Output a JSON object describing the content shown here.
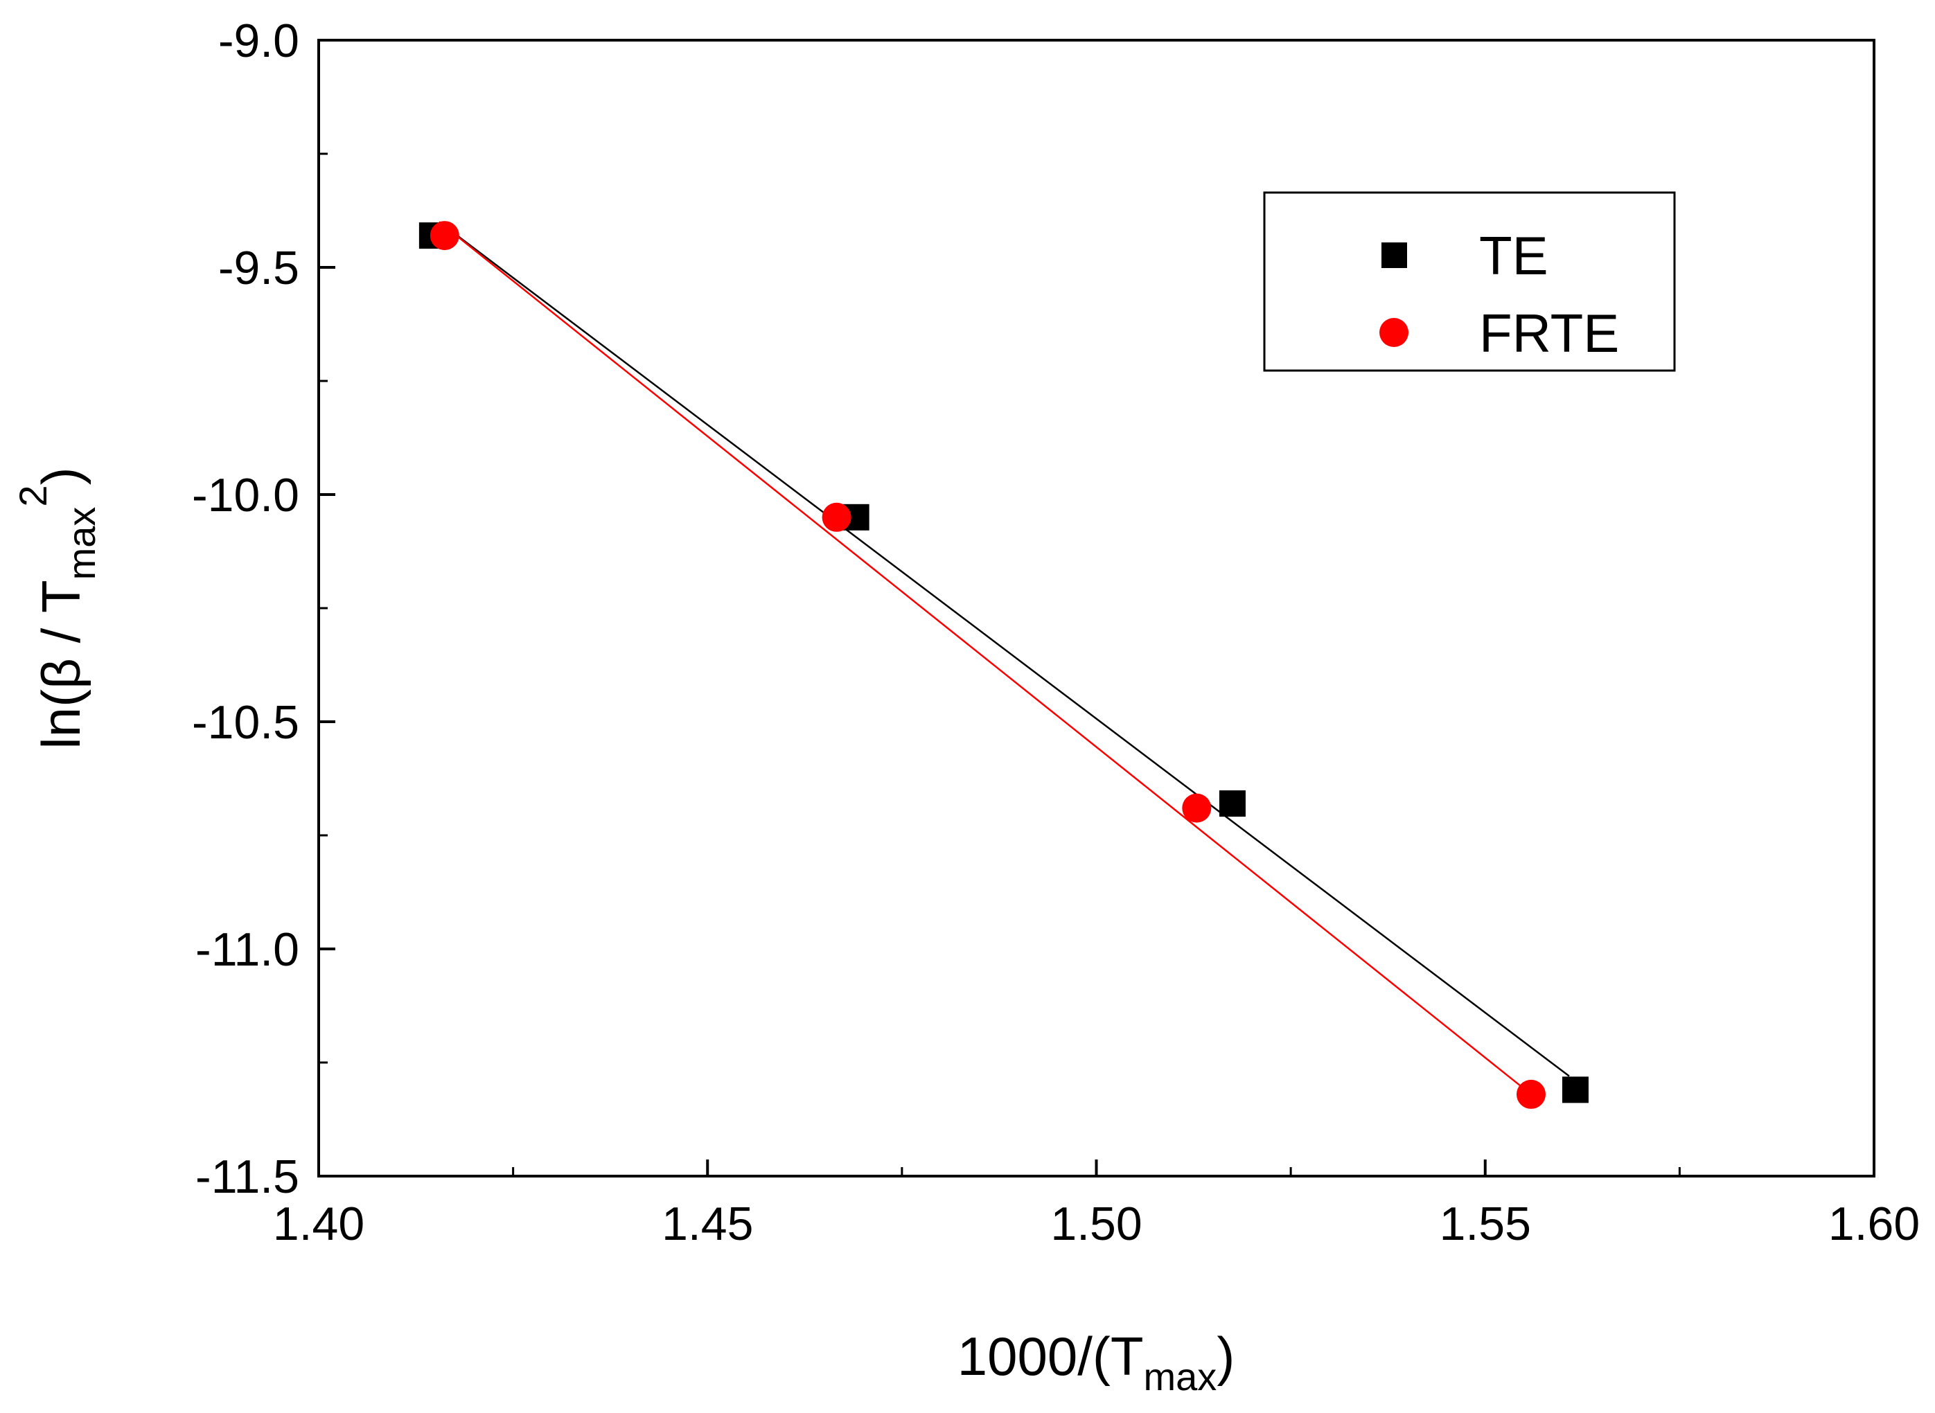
{
  "chart_data": {
    "type": "scatter",
    "title": "",
    "xlabel": {
      "main": "1000/(T",
      "sub": "max",
      "tail": ")"
    },
    "ylabel": {
      "main": "ln(β / T",
      "sub": "max",
      "sup": "2",
      "tail": ")"
    },
    "xlim": [
      1.4,
      1.6
    ],
    "ylim": [
      -11.5,
      -9.0
    ],
    "x_ticks": [
      1.4,
      1.45,
      1.5,
      1.55,
      1.6
    ],
    "x_tick_labels": [
      "1.40",
      "1.45",
      "1.50",
      "1.55",
      "1.60"
    ],
    "x_minor_ticks": [
      1.425,
      1.475,
      1.525,
      1.575
    ],
    "y_ticks": [
      -11.5,
      -11.0,
      -10.5,
      -10.0,
      -9.5,
      -9.0
    ],
    "y_tick_labels": [
      "-11.5",
      "-11.0",
      "-10.5",
      "-10.0",
      "-9.5",
      "-9.0"
    ],
    "y_minor_ticks": [
      -11.25,
      -10.75,
      -10.25,
      -9.75,
      -9.25
    ],
    "grid": false,
    "legend_position": "top-right",
    "series": [
      {
        "name": "TE",
        "marker": "square",
        "color": "#000000",
        "x": [
          1.4146,
          1.4691,
          1.5175,
          1.5616
        ],
        "y": [
          -9.43,
          -10.05,
          -10.68,
          -11.31
        ],
        "fit": {
          "x": [
            1.4155,
            1.5608
          ],
          "y": [
            -9.4,
            -11.28
          ]
        }
      },
      {
        "name": "FRTE",
        "marker": "circle",
        "color": "#ff0000",
        "x": [
          1.4162,
          1.4666,
          1.5129,
          1.5559
        ],
        "y": [
          -9.43,
          -10.05,
          -10.69,
          -11.32
        ],
        "fit": {
          "x": [
            1.4155,
            1.5559
          ],
          "y": [
            -9.4,
            -11.32
          ]
        }
      }
    ]
  }
}
